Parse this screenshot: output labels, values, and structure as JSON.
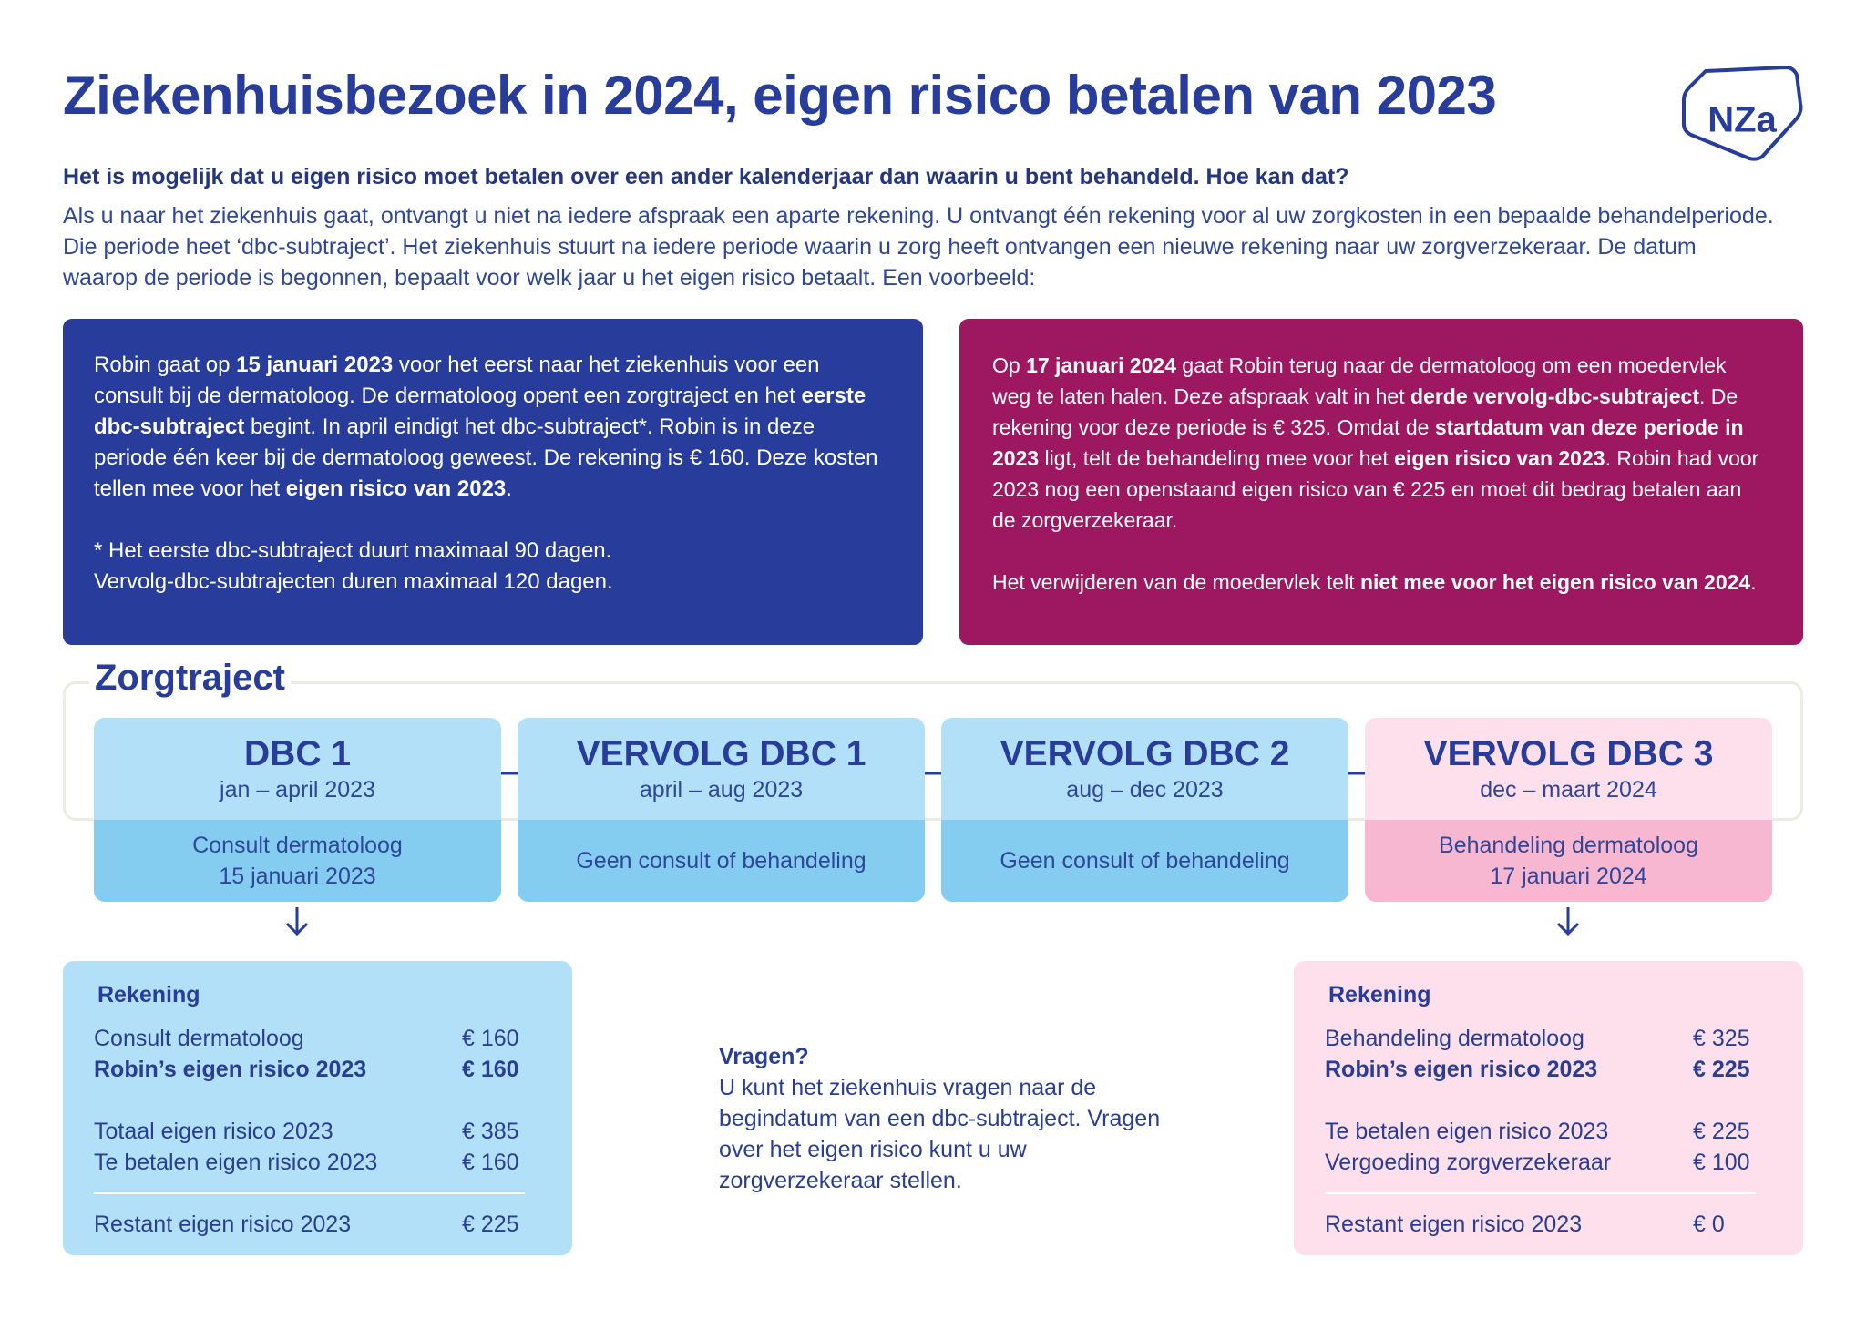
{
  "header": {
    "title": "Ziekenhuisbezoek in 2024, eigen risico betalen van 2023",
    "logo": "NZa"
  },
  "intro": {
    "question": "Het is mogelijk dat u eigen risico moet betalen over een ander kalenderjaar dan waarin u bent behandeld. Hoe kan dat?",
    "text": "Als u naar het ziekenhuis gaat, ontvangt u niet na iedere afspraak een aparte rekening. U ontvangt één rekening voor al uw zorgkosten in een bepaalde behandelperiode. Die periode heet ‘dbc-subtraject’. Het ziekenhuis stuurt na iedere periode waarin u zorg heeft ontvangen een nieuwe rekening naar uw zorgverzekeraar. De datum waarop de periode is begonnen, bepaalt voor welk jaar u het eigen risico betaalt. Een voorbeeld:"
  },
  "example_boxes": [
    {
      "paragraphs": [
        [
          {
            "text": "Robin gaat op "
          },
          {
            "text": "15 januari 2023",
            "bold": true
          },
          {
            "text": " voor het eerst naar het ziekenhuis voor een consult bij de dermatoloog. De dermatoloog opent een zorgtraject en het "
          },
          {
            "text": "eerste dbc-subtraject",
            "bold": true
          },
          {
            "text": " begint. In april eindigt het dbc-subtraject*. Robin is in deze periode één keer bij de dermatoloog geweest. De rekening is € 160. Deze kosten tellen mee voor het "
          },
          {
            "text": "eigen risico van 2023",
            "bold": true
          },
          {
            "text": "."
          }
        ]
      ],
      "footnote": [
        "* Het eerste dbc-subtraject duurt maximaal 90 dagen.",
        "Vervolg-dbc-subtrajecten duren maximaal 120 dagen."
      ]
    },
    {
      "paragraphs": [
        [
          {
            "text": "Op "
          },
          {
            "text": "17 januari 2024",
            "bold": true
          },
          {
            "text": " gaat Robin terug naar de dermatoloog om een moedervlek weg te laten halen. Deze afspraak valt in het "
          },
          {
            "text": "derde vervolg-dbc-subtraject",
            "bold": true
          },
          {
            "text": ". De rekening voor deze periode is € 325. Omdat de "
          },
          {
            "text": "startdatum van deze periode in 2023",
            "bold": true
          },
          {
            "text": " ligt, telt de behandeling mee voor het "
          },
          {
            "text": "eigen risico van 2023",
            "bold": true
          },
          {
            "text": ". Robin had voor 2023 nog een openstaand eigen risico van € 225 en moet dit bedrag betalen aan de zorgverzekeraar."
          }
        ],
        [
          {
            "text": "Het verwijderen van de moedervlek telt "
          },
          {
            "text": "niet mee voor het eigen risico van 2024",
            "bold": true
          },
          {
            "text": "."
          }
        ]
      ]
    }
  ],
  "zorgtraject": {
    "title": "Zorgtraject",
    "steps": [
      {
        "name": "DBC 1",
        "period": "jan – april 2023",
        "event": [
          "Consult dermatoloog",
          "15  januari 2023"
        ],
        "color": "blue"
      },
      {
        "name": "VERVOLG DBC 1",
        "period": "april – aug 2023",
        "event": [
          "Geen consult of behandeling"
        ],
        "color": "blue"
      },
      {
        "name": "VERVOLG DBC 2",
        "period": "aug – dec 2023",
        "event": [
          "Geen consult of behandeling"
        ],
        "color": "blue"
      },
      {
        "name": "VERVOLG DBC 3",
        "period": "dec – maart 2024",
        "event": [
          "Behandeling dermatoloog",
          "17 januari 2024"
        ],
        "color": "pink"
      }
    ]
  },
  "invoices": [
    {
      "title": "Rekening",
      "groups": [
        [
          {
            "label": "Consult dermatoloog",
            "amount": "€ 160"
          },
          {
            "label": "Robin’s eigen risico 2023",
            "amount": "€ 160",
            "bold": true
          }
        ],
        [
          {
            "label": "Totaal eigen risico 2023",
            "amount": "€ 385"
          },
          {
            "label": "Te betalen eigen risico 2023",
            "amount": "€ 160"
          }
        ],
        [
          {
            "label": "Restant eigen risico 2023",
            "amount": "€ 225"
          }
        ]
      ]
    },
    {
      "title": "Rekening",
      "groups": [
        [
          {
            "label": "Behandeling dermatoloog",
            "amount": "€ 325"
          },
          {
            "label": "Robin’s eigen risico 2023",
            "amount": "€ 225",
            "bold": true
          }
        ],
        [
          {
            "label": "Te betalen eigen risico 2023",
            "amount": "€ 225"
          },
          {
            "label": "Vergoeding zorgverzekeraar",
            "amount": "€ 100"
          }
        ],
        [
          {
            "label": "Restant eigen risico 2023",
            "amount": "€ 0"
          }
        ]
      ]
    }
  ],
  "questions": {
    "title": "Vragen?",
    "text": "U kunt het ziekenhuis vragen naar de begindatum van een dbc-subtraject. Vragen over het eigen risico kunt u uw zorgverzekeraar stellen."
  }
}
